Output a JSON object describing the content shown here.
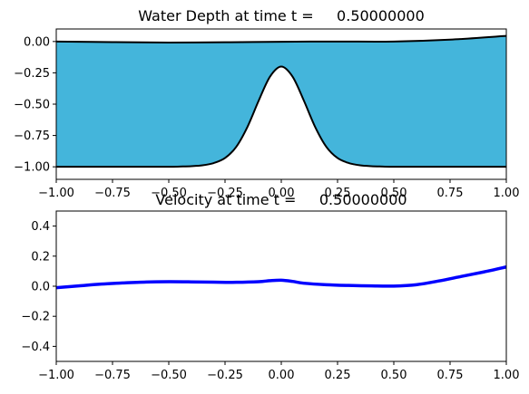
{
  "chart_data": [
    {
      "type": "area",
      "title": "Water Depth at time t =     0.50000000",
      "xlabel": "",
      "ylabel": "",
      "xlim": [
        -1.0,
        1.0
      ],
      "ylim": [
        -1.1,
        0.1
      ],
      "x_ticks": [
        -1.0,
        -0.75,
        -0.5,
        -0.25,
        0.0,
        0.25,
        0.5,
        0.75,
        1.0
      ],
      "x_tick_labels": [
        "−1.00",
        "−0.75",
        "−0.50",
        "−0.25",
        "0.00",
        "0.25",
        "0.50",
        "0.75",
        "1.00"
      ],
      "y_ticks": [
        0.0,
        -0.25,
        -0.5,
        -0.75,
        -1.0
      ],
      "y_tick_labels": [
        "0.00",
        "−0.25",
        "−0.50",
        "−0.75",
        "−1.00"
      ],
      "grid": false,
      "fill_color": "#44b5db",
      "line_color": "#000000",
      "surface": {
        "x": [
          -1.0,
          -0.75,
          -0.5,
          -0.25,
          0.0,
          0.25,
          0.5,
          0.75,
          1.0
        ],
        "y": [
          0.0,
          -0.005,
          -0.008,
          -0.006,
          -0.002,
          0.0,
          0.0,
          0.015,
          0.045
        ]
      },
      "bottom": {
        "x": [
          -1.0,
          -0.6,
          -0.5,
          -0.45,
          -0.4,
          -0.35,
          -0.3,
          -0.25,
          -0.2,
          -0.15,
          -0.1,
          -0.05,
          0.0,
          0.05,
          0.1,
          0.15,
          0.2,
          0.25,
          0.3,
          0.35,
          0.4,
          0.45,
          0.5,
          0.6,
          1.0
        ],
        "y": [
          -1.0,
          -1.0,
          -1.0,
          -0.998,
          -0.995,
          -0.988,
          -0.97,
          -0.93,
          -0.84,
          -0.68,
          -0.47,
          -0.28,
          -0.2,
          -0.28,
          -0.47,
          -0.68,
          -0.84,
          -0.93,
          -0.97,
          -0.988,
          -0.995,
          -0.998,
          -1.0,
          -1.0,
          -1.0
        ]
      }
    },
    {
      "type": "line",
      "title": "Velocity at time t =     0.50000000",
      "xlabel": "",
      "ylabel": "",
      "xlim": [
        -1.0,
        1.0
      ],
      "ylim": [
        -0.5,
        0.5
      ],
      "x_ticks": [
        -1.0,
        -0.75,
        -0.5,
        -0.25,
        0.0,
        0.25,
        0.5,
        0.75,
        1.0
      ],
      "x_tick_labels": [
        "−1.00",
        "−0.75",
        "−0.50",
        "−0.25",
        "0.00",
        "0.25",
        "0.50",
        "0.75",
        "1.00"
      ],
      "y_ticks": [
        0.4,
        0.2,
        0.0,
        -0.2,
        -0.4
      ],
      "y_tick_labels": [
        "0.4",
        "0.2",
        "0.0",
        "−0.2",
        "−0.4"
      ],
      "grid": false,
      "line_color": "#0000ff",
      "series": [
        {
          "x": [
            -1.0,
            -0.9,
            -0.8,
            -0.7,
            -0.6,
            -0.5,
            -0.4,
            -0.3,
            -0.2,
            -0.1,
            -0.05,
            0.0,
            0.05,
            0.1,
            0.2,
            0.3,
            0.4,
            0.5,
            0.6,
            0.7,
            0.8,
            0.9,
            1.0
          ],
          "y": [
            -0.01,
            0.002,
            0.014,
            0.022,
            0.028,
            0.03,
            0.029,
            0.027,
            0.026,
            0.03,
            0.037,
            0.04,
            0.032,
            0.02,
            0.01,
            0.005,
            0.002,
            0.001,
            0.01,
            0.035,
            0.065,
            0.095,
            0.128
          ]
        }
      ]
    }
  ]
}
